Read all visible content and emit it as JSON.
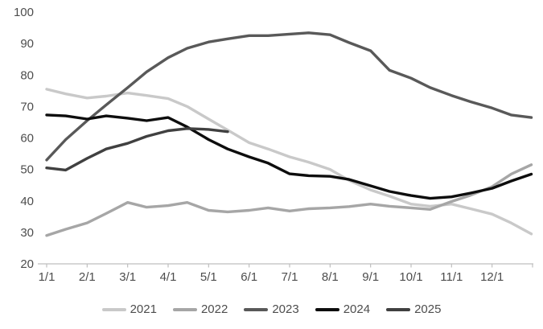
{
  "chart_data": {
    "type": "line",
    "title": "",
    "grid": false,
    "legend_position": "bottom",
    "x_axis": {
      "tick_labels": [
        "1/1",
        "2/1",
        "3/1",
        "4/1",
        "5/1",
        "6/1",
        "7/1",
        "8/1",
        "9/1",
        "10/1",
        "11/1",
        "12/1"
      ],
      "range_months": [
        0,
        12
      ]
    },
    "y_axis": {
      "min": 20,
      "max": 100,
      "step": 10,
      "tick_labels": [
        "20",
        "30",
        "40",
        "50",
        "60",
        "70",
        "80",
        "90",
        "100"
      ]
    },
    "series": [
      {
        "name": "2021",
        "color": "#C9C9C9",
        "x": [
          0,
          0.47,
          1,
          1.47,
          2,
          2.47,
          3,
          3.47,
          4,
          4.47,
          5,
          5.47,
          6,
          6.47,
          7,
          7.47,
          8,
          8.47,
          9,
          9.47,
          10,
          10.47,
          11,
          11.47,
          11.97
        ],
        "values": [
          75.5,
          74,
          72.7,
          73.3,
          74.3,
          73.5,
          72.5,
          70,
          66,
          62.5,
          58.5,
          56.5,
          54,
          52.3,
          50,
          46.5,
          43.5,
          41.5,
          39,
          38.3,
          39,
          37.5,
          35.8,
          33,
          29.5
        ]
      },
      {
        "name": "2022",
        "color": "#A6A6A6",
        "x": [
          0,
          0.47,
          1,
          1.47,
          2,
          2.47,
          3,
          3.47,
          4,
          4.47,
          5,
          5.47,
          6,
          6.47,
          7,
          7.47,
          8,
          8.47,
          9,
          9.47,
          10,
          10.47,
          11,
          11.47,
          11.97
        ],
        "values": [
          29,
          31,
          33,
          36,
          39.5,
          38,
          38.5,
          39.5,
          37,
          36.5,
          37,
          37.8,
          36.8,
          37.5,
          37.8,
          38.2,
          39,
          38.3,
          37.8,
          37.3,
          39.8,
          41.8,
          44.5,
          48.5,
          51.5
        ]
      },
      {
        "name": "2023",
        "color": "#595959",
        "x": [
          0,
          0.47,
          1,
          1.47,
          2,
          2.47,
          3,
          3.47,
          4,
          4.47,
          5,
          5.47,
          6,
          6.47,
          7,
          7.47,
          8,
          8.47,
          9,
          9.47,
          10,
          10.47,
          11,
          11.47,
          11.97
        ],
        "values": [
          53,
          59.5,
          65.5,
          70.5,
          76,
          81,
          85.5,
          88.5,
          90.5,
          91.5,
          92.5,
          92.5,
          93,
          93.4,
          92.8,
          90.3,
          87.7,
          81.5,
          79,
          76,
          73.5,
          71.5,
          69.5,
          67.3,
          66.5
        ]
      },
      {
        "name": "2024",
        "color": "#0D0D0D",
        "x": [
          0,
          0.47,
          1,
          1.47,
          2,
          2.47,
          3,
          3.47,
          4,
          4.47,
          5,
          5.47,
          6,
          6.47,
          7,
          7.47,
          8,
          8.47,
          9,
          9.47,
          10,
          10.47,
          11,
          11.47,
          11.97
        ],
        "values": [
          67.3,
          67,
          66,
          67,
          66.3,
          65.5,
          66.5,
          63.5,
          59.5,
          56.5,
          54,
          52,
          48.6,
          48,
          47.8,
          46.8,
          44.8,
          43,
          41.7,
          40.8,
          41.3,
          42.5,
          44,
          46.3,
          48.5
        ]
      },
      {
        "name": "2025",
        "color": "#404040",
        "x": [
          0,
          0.47,
          1,
          1.47,
          2,
          2.47,
          3,
          3.47,
          4,
          4.47
        ],
        "values": [
          50.5,
          49.8,
          53.5,
          56.5,
          58.3,
          60.5,
          62.3,
          63,
          62.7,
          62
        ]
      }
    ]
  },
  "style": {
    "axis_line_color": "#BFBFBF",
    "label_color": "#4d4d4d",
    "background": "#FFFFFF"
  }
}
